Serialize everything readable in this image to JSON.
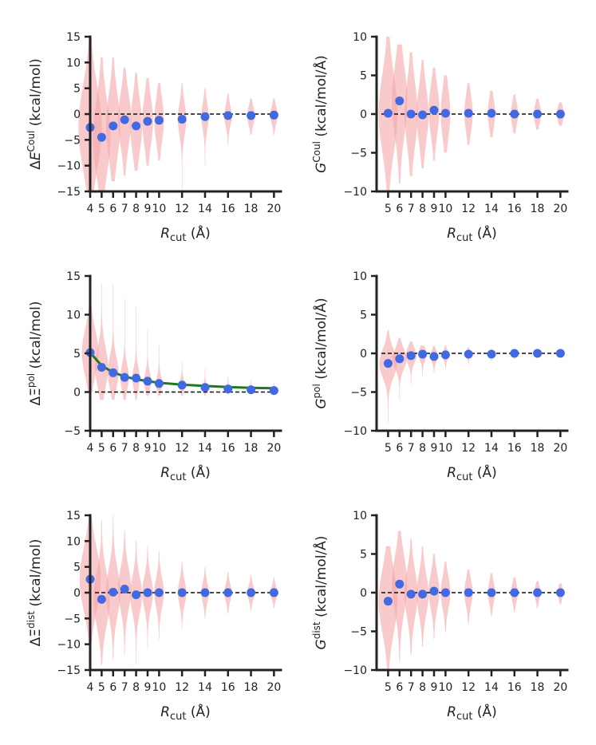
{
  "colors": {
    "point": "#4169e1",
    "violin": "#f4a6aa",
    "fit": "#1f7a1f",
    "axis": "#222222"
  },
  "chart_data": [
    {
      "type": "scatter",
      "id": "dE-coul",
      "ylabel": {
        "prefix": "Δ",
        "symbol": "E",
        "sup": "Coul",
        "unit": "(kcal/mol)",
        "symbol_italic": true
      },
      "xlabel": {
        "symbol": "R",
        "sub": "cut",
        "unit": "(Å)"
      },
      "ylim": [
        -15,
        15
      ],
      "yticks": [
        "−15",
        "−10",
        "−5",
        "0",
        "5",
        "10",
        "15"
      ],
      "x": [
        "4",
        "5",
        "6",
        "7",
        "8",
        "9",
        "10",
        "12",
        "14",
        "16",
        "18",
        "20"
      ],
      "y": [
        -2.6,
        -4.5,
        -2.3,
        -1.1,
        -2.3,
        -1.4,
        -1.2,
        -1.0,
        -0.5,
        -0.3,
        -0.3,
        -0.2
      ],
      "violin_half_width": [
        1.0,
        0.75,
        0.6,
        0.55,
        0.5,
        0.45,
        0.4,
        0.35,
        0.3,
        0.3,
        0.3,
        0.3
      ],
      "violin_spread": [
        8,
        7,
        6,
        5,
        5,
        4.5,
        4,
        3,
        2.5,
        2,
        1.8,
        1.6
      ],
      "violin_y_range": [
        [
          -15,
          15
        ],
        [
          -15,
          11
        ],
        [
          -13,
          11
        ],
        [
          -12,
          9
        ],
        [
          -11,
          8
        ],
        [
          -10,
          7
        ],
        [
          -9,
          6
        ],
        [
          -15,
          6
        ],
        [
          -10,
          5
        ],
        [
          -6,
          4
        ],
        [
          -4,
          3
        ],
        [
          -4,
          3
        ]
      ],
      "reference_line": 0,
      "fit": null
    },
    {
      "type": "scatter",
      "id": "G-coul",
      "ylabel": {
        "prefix": "",
        "symbol": "G",
        "sup": "Coul",
        "unit": "(kcal/mol/Å)",
        "symbol_italic": true
      },
      "xlabel": {
        "symbol": "R",
        "sub": "cut",
        "unit": "(Å)"
      },
      "ylim": [
        -10,
        10
      ],
      "yticks": [
        "−10",
        "−5",
        "0",
        "5",
        "10"
      ],
      "x": [
        "5",
        "6",
        "7",
        "8",
        "9",
        "10",
        "12",
        "14",
        "16",
        "18",
        "20"
      ],
      "y": [
        0.1,
        1.7,
        0.0,
        -0.1,
        0.5,
        0.1,
        0.1,
        0.1,
        0.0,
        0.0,
        0.0
      ],
      "violin_half_width": [
        0.8,
        0.65,
        0.55,
        0.5,
        0.45,
        0.4,
        0.35,
        0.3,
        0.3,
        0.3,
        0.3
      ],
      "violin_spread": [
        5,
        4.5,
        4,
        3.5,
        3,
        3,
        2.2,
        1.8,
        1.4,
        1.2,
        1.0
      ],
      "violin_y_range": [
        [
          -10,
          10
        ],
        [
          -9,
          9
        ],
        [
          -8,
          8
        ],
        [
          -7,
          7
        ],
        [
          -6,
          6
        ],
        [
          -5,
          5
        ],
        [
          -4,
          4
        ],
        [
          -3,
          3
        ],
        [
          -2.5,
          2.5
        ],
        [
          -2,
          2
        ],
        [
          -1.5,
          1.5
        ]
      ],
      "reference_line": 0,
      "fit": null
    },
    {
      "type": "scatter",
      "id": "dXi-pol",
      "ylabel": {
        "prefix": "Δ",
        "symbol": "Ξ",
        "sup": "pol",
        "unit": "(kcal/mol)",
        "symbol_italic": false
      },
      "xlabel": {
        "symbol": "R",
        "sub": "cut",
        "unit": "(Å)"
      },
      "ylim": [
        -5,
        15
      ],
      "yticks": [
        "−5",
        "0",
        "5",
        "10",
        "15"
      ],
      "x": [
        "4",
        "5",
        "6",
        "7",
        "8",
        "9",
        "10",
        "12",
        "14",
        "16",
        "18",
        "20"
      ],
      "y": [
        5.1,
        3.2,
        2.5,
        1.9,
        1.8,
        1.4,
        1.1,
        0.9,
        0.6,
        0.4,
        0.3,
        0.2
      ],
      "violin_half_width": [
        0.7,
        0.55,
        0.45,
        0.35,
        0.3,
        0.28,
        0.25,
        0.2,
        0.15,
        0.12,
        0.1,
        0.1
      ],
      "violin_spread": [
        3,
        2.5,
        2,
        1.6,
        1.4,
        1.2,
        1.0,
        0.8,
        0.6,
        0.5,
        0.4,
        0.35
      ],
      "violin_y_range": [
        [
          0,
          15
        ],
        [
          -1,
          14
        ],
        [
          -1,
          14
        ],
        [
          -1,
          12
        ],
        [
          -1,
          11
        ],
        [
          -0.5,
          8
        ],
        [
          -0.5,
          6
        ],
        [
          -0.5,
          4
        ],
        [
          -0.5,
          3
        ],
        [
          -0.3,
          2
        ],
        [
          -0.3,
          1.5
        ],
        [
          -0.3,
          1.2
        ]
      ],
      "reference_line": 0,
      "fit": {
        "x": [
          4,
          5,
          6,
          7,
          8,
          9,
          10,
          12,
          14,
          16,
          18,
          20
        ],
        "y": [
          5.1,
          3.4,
          2.55,
          2.0,
          1.65,
          1.4,
          1.2,
          0.95,
          0.78,
          0.65,
          0.55,
          0.48
        ]
      }
    },
    {
      "type": "scatter",
      "id": "G-pol",
      "ylabel": {
        "prefix": "",
        "symbol": "G",
        "sup": "pol",
        "unit": "(kcal/mol/Å)",
        "symbol_italic": true
      },
      "xlabel": {
        "symbol": "R",
        "sub": "cut",
        "unit": "(Å)"
      },
      "ylim": [
        -10,
        10
      ],
      "yticks": [
        "−10",
        "−5",
        "0",
        "5",
        "10"
      ],
      "x": [
        "5",
        "6",
        "7",
        "8",
        "9",
        "10",
        "12",
        "14",
        "16",
        "18",
        "20"
      ],
      "y": [
        -1.3,
        -0.7,
        -0.3,
        -0.1,
        -0.4,
        -0.2,
        -0.1,
        -0.1,
        0.0,
        0.0,
        0.0
      ],
      "violin_half_width": [
        0.75,
        0.6,
        0.45,
        0.35,
        0.3,
        0.25,
        0.2,
        0.15,
        0.12,
        0.1,
        0.1
      ],
      "violin_spread": [
        1.8,
        1.3,
        1.0,
        0.8,
        0.7,
        0.6,
        0.45,
        0.35,
        0.3,
        0.25,
        0.2
      ],
      "violin_y_range": [
        [
          -9,
          3
        ],
        [
          -6,
          2
        ],
        [
          -4,
          1.5
        ],
        [
          -3,
          1
        ],
        [
          -2.5,
          1
        ],
        [
          -2,
          1
        ],
        [
          -1.5,
          0.8
        ],
        [
          -1,
          0.6
        ],
        [
          -0.8,
          0.5
        ],
        [
          -0.6,
          0.4
        ],
        [
          -0.5,
          0.3
        ]
      ],
      "reference_line": 0,
      "fit": null
    },
    {
      "type": "scatter",
      "id": "dXi-dist",
      "ylabel": {
        "prefix": "Δ",
        "symbol": "Ξ",
        "sup": "dist",
        "unit": "(kcal/mol)",
        "symbol_italic": false
      },
      "xlabel": {
        "symbol": "R",
        "sub": "cut",
        "unit": "(Å)"
      },
      "ylim": [
        -15,
        15
      ],
      "yticks": [
        "−15",
        "−10",
        "−5",
        "0",
        "5",
        "10",
        "15"
      ],
      "x": [
        "4",
        "5",
        "6",
        "7",
        "8",
        "9",
        "10",
        "12",
        "14",
        "16",
        "18",
        "20"
      ],
      "y": [
        2.6,
        -1.3,
        0.1,
        0.7,
        -0.4,
        0.0,
        0.0,
        0.0,
        0.0,
        0.0,
        0.0,
        0.0
      ],
      "violin_half_width": [
        0.9,
        0.7,
        0.6,
        0.55,
        0.5,
        0.45,
        0.4,
        0.35,
        0.3,
        0.3,
        0.3,
        0.3
      ],
      "violin_spread": [
        6,
        5,
        4.5,
        4,
        3.5,
        3,
        2.8,
        2.3,
        1.9,
        1.6,
        1.4,
        1.2
      ],
      "violin_y_range": [
        [
          -15,
          15
        ],
        [
          -14,
          14
        ],
        [
          -13,
          15
        ],
        [
          -12,
          12
        ],
        [
          -14,
          10
        ],
        [
          -11,
          9
        ],
        [
          -9,
          8
        ],
        [
          -7,
          6
        ],
        [
          -5,
          5
        ],
        [
          -4,
          4
        ],
        [
          -3.5,
          3.5
        ],
        [
          -3,
          3
        ]
      ],
      "reference_line": 0,
      "fit": null
    },
    {
      "type": "scatter",
      "id": "G-dist",
      "ylabel": {
        "prefix": "",
        "symbol": "G",
        "sup": "dist",
        "unit": "(kcal/mol/Å)",
        "symbol_italic": true
      },
      "xlabel": {
        "symbol": "R",
        "sub": "cut",
        "unit": "(Å)"
      },
      "ylim": [
        -10,
        10
      ],
      "yticks": [
        "−10",
        "−5",
        "0",
        "5",
        "10"
      ],
      "x": [
        "5",
        "6",
        "7",
        "8",
        "9",
        "10",
        "12",
        "14",
        "16",
        "18",
        "20"
      ],
      "y": [
        -1.1,
        1.1,
        -0.2,
        -0.2,
        0.2,
        0.0,
        0.0,
        0.0,
        0.0,
        0.0,
        0.0
      ],
      "violin_half_width": [
        0.8,
        0.65,
        0.55,
        0.5,
        0.45,
        0.4,
        0.35,
        0.3,
        0.28,
        0.25,
        0.22
      ],
      "violin_spread": [
        4,
        3.5,
        3,
        2.6,
        2.2,
        2,
        1.6,
        1.3,
        1.1,
        0.9,
        0.8
      ],
      "violin_y_range": [
        [
          -10,
          6
        ],
        [
          -9,
          8
        ],
        [
          -8,
          7
        ],
        [
          -7,
          6
        ],
        [
          -6,
          5
        ],
        [
          -5,
          4
        ],
        [
          -4,
          3
        ],
        [
          -3,
          2.5
        ],
        [
          -2.5,
          2
        ],
        [
          -2,
          1.5
        ],
        [
          -1.5,
          1.2
        ]
      ],
      "reference_line": 0,
      "fit": null
    }
  ]
}
